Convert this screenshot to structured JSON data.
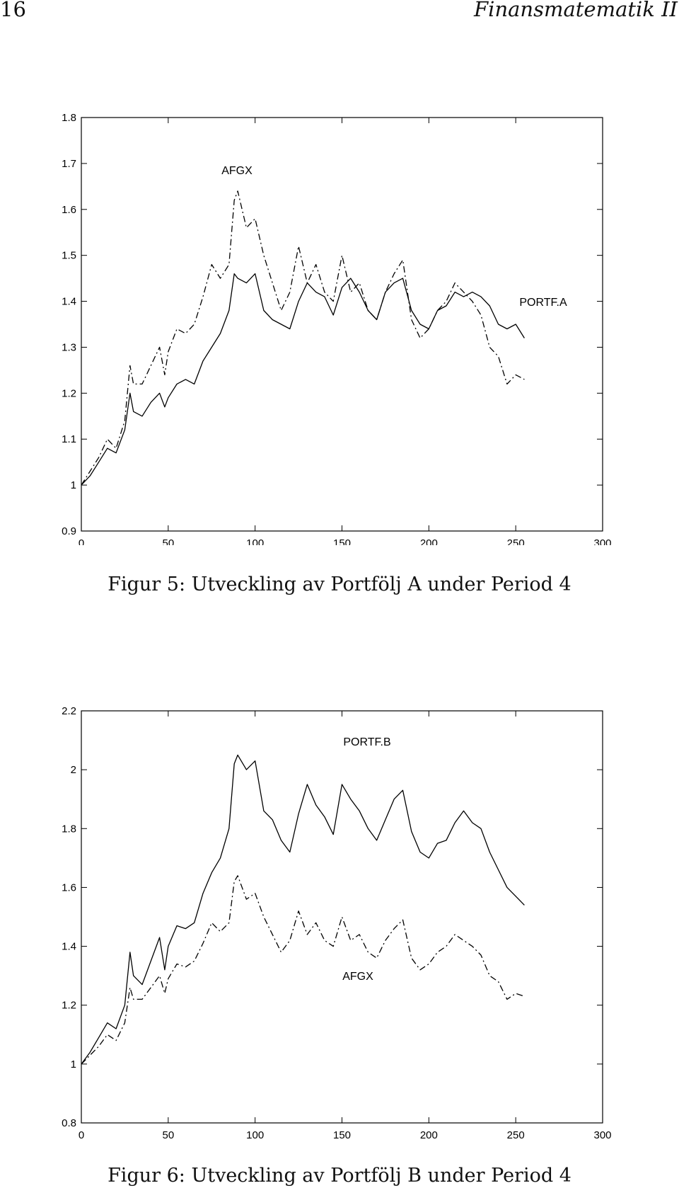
{
  "header": {
    "page_number": "16",
    "running_title": "Finansmatematik II"
  },
  "figures": [
    {
      "caption": "Figur 5: Utveckling av Portfölj A under Period 4",
      "annotations": [
        "AFGX",
        "PORTF.A"
      ]
    },
    {
      "caption": "Figur 6: Utveckling av Portfölj B under Period 4",
      "annotations": [
        "PORTF.B",
        "AFGX"
      ]
    }
  ],
  "chart_data": [
    {
      "type": "line",
      "title": "",
      "xlabel": "",
      "ylabel": "",
      "xlim": [
        0,
        300
      ],
      "ylim": [
        0.9,
        1.8
      ],
      "xticks": [
        "0",
        "50",
        "100",
        "150",
        "200",
        "250",
        "300"
      ],
      "yticks": [
        "0.9",
        "1",
        "1.1",
        "1.2",
        "1.3",
        "1.4",
        "1.5",
        "1.6",
        "1.7",
        "1.8"
      ],
      "grid": false,
      "series": [
        {
          "name": "PORTF.A",
          "style": "solid",
          "x": [
            0,
            5,
            10,
            15,
            20,
            25,
            28,
            30,
            35,
            40,
            45,
            48,
            50,
            55,
            60,
            65,
            70,
            75,
            80,
            85,
            88,
            90,
            95,
            100,
            105,
            110,
            115,
            120,
            125,
            130,
            135,
            140,
            145,
            150,
            155,
            160,
            165,
            170,
            175,
            180,
            185,
            190,
            195,
            200,
            205,
            210,
            215,
            220,
            225,
            230,
            235,
            240,
            245,
            250,
            255
          ],
          "y": [
            1.0,
            1.02,
            1.05,
            1.08,
            1.07,
            1.12,
            1.2,
            1.16,
            1.15,
            1.18,
            1.2,
            1.17,
            1.19,
            1.22,
            1.23,
            1.22,
            1.27,
            1.3,
            1.33,
            1.38,
            1.46,
            1.45,
            1.44,
            1.46,
            1.38,
            1.36,
            1.35,
            1.34,
            1.4,
            1.44,
            1.42,
            1.41,
            1.37,
            1.43,
            1.45,
            1.42,
            1.38,
            1.36,
            1.42,
            1.44,
            1.45,
            1.38,
            1.35,
            1.34,
            1.38,
            1.39,
            1.42,
            1.41,
            1.42,
            1.41,
            1.39,
            1.35,
            1.34,
            1.35,
            1.32
          ]
        },
        {
          "name": "AFGX",
          "style": "dashdot",
          "x": [
            0,
            5,
            10,
            15,
            20,
            25,
            28,
            30,
            35,
            40,
            45,
            48,
            50,
            55,
            60,
            65,
            70,
            75,
            80,
            85,
            88,
            90,
            95,
            100,
            105,
            110,
            115,
            120,
            125,
            130,
            135,
            140,
            145,
            150,
            155,
            160,
            165,
            170,
            175,
            180,
            185,
            190,
            195,
            200,
            205,
            210,
            215,
            220,
            225,
            230,
            235,
            240,
            245,
            250,
            255
          ],
          "y": [
            1.0,
            1.03,
            1.06,
            1.1,
            1.08,
            1.14,
            1.26,
            1.22,
            1.22,
            1.26,
            1.3,
            1.24,
            1.29,
            1.34,
            1.33,
            1.35,
            1.41,
            1.48,
            1.45,
            1.48,
            1.62,
            1.64,
            1.56,
            1.58,
            1.5,
            1.44,
            1.38,
            1.42,
            1.52,
            1.44,
            1.48,
            1.42,
            1.4,
            1.5,
            1.42,
            1.44,
            1.38,
            1.36,
            1.42,
            1.46,
            1.49,
            1.36,
            1.32,
            1.34,
            1.38,
            1.4,
            1.44,
            1.42,
            1.4,
            1.37,
            1.3,
            1.28,
            1.22,
            1.24,
            1.23
          ]
        }
      ]
    },
    {
      "type": "line",
      "title": "",
      "xlabel": "",
      "ylabel": "",
      "xlim": [
        0,
        300
      ],
      "ylim": [
        0.8,
        2.2
      ],
      "xticks": [
        "0",
        "50",
        "100",
        "150",
        "200",
        "250",
        "300"
      ],
      "yticks": [
        "0.8",
        "1",
        "1.2",
        "1.4",
        "1.6",
        "1.8",
        "2",
        "2.2"
      ],
      "grid": false,
      "series": [
        {
          "name": "PORTF.B",
          "style": "solid",
          "x": [
            0,
            5,
            10,
            15,
            20,
            25,
            28,
            30,
            35,
            40,
            45,
            48,
            50,
            55,
            60,
            65,
            70,
            75,
            80,
            85,
            88,
            90,
            95,
            100,
            105,
            110,
            115,
            120,
            125,
            130,
            135,
            140,
            145,
            150,
            155,
            160,
            165,
            170,
            175,
            180,
            185,
            190,
            195,
            200,
            205,
            210,
            215,
            220,
            225,
            230,
            235,
            240,
            245,
            250,
            255
          ],
          "y": [
            1.0,
            1.04,
            1.09,
            1.14,
            1.12,
            1.2,
            1.38,
            1.3,
            1.27,
            1.35,
            1.43,
            1.32,
            1.4,
            1.47,
            1.46,
            1.48,
            1.58,
            1.65,
            1.7,
            1.8,
            2.02,
            2.05,
            2.0,
            2.03,
            1.86,
            1.83,
            1.76,
            1.72,
            1.85,
            1.95,
            1.88,
            1.84,
            1.78,
            1.95,
            1.9,
            1.86,
            1.8,
            1.76,
            1.83,
            1.9,
            1.93,
            1.79,
            1.72,
            1.7,
            1.75,
            1.76,
            1.82,
            1.86,
            1.82,
            1.8,
            1.72,
            1.66,
            1.6,
            1.57,
            1.54
          ]
        },
        {
          "name": "AFGX",
          "style": "dashdot",
          "x": [
            0,
            5,
            10,
            15,
            20,
            25,
            28,
            30,
            35,
            40,
            45,
            48,
            50,
            55,
            60,
            65,
            70,
            75,
            80,
            85,
            88,
            90,
            95,
            100,
            105,
            110,
            115,
            120,
            125,
            130,
            135,
            140,
            145,
            150,
            155,
            160,
            165,
            170,
            175,
            180,
            185,
            190,
            195,
            200,
            205,
            210,
            215,
            220,
            225,
            230,
            235,
            240,
            245,
            250,
            255
          ],
          "y": [
            1.0,
            1.03,
            1.06,
            1.1,
            1.08,
            1.14,
            1.26,
            1.22,
            1.22,
            1.26,
            1.3,
            1.24,
            1.29,
            1.34,
            1.33,
            1.35,
            1.41,
            1.48,
            1.45,
            1.48,
            1.62,
            1.64,
            1.56,
            1.58,
            1.5,
            1.44,
            1.38,
            1.42,
            1.52,
            1.44,
            1.48,
            1.42,
            1.4,
            1.5,
            1.42,
            1.44,
            1.38,
            1.36,
            1.42,
            1.46,
            1.49,
            1.36,
            1.32,
            1.34,
            1.38,
            1.4,
            1.44,
            1.42,
            1.4,
            1.37,
            1.3,
            1.28,
            1.22,
            1.24,
            1.23
          ]
        }
      ]
    }
  ]
}
